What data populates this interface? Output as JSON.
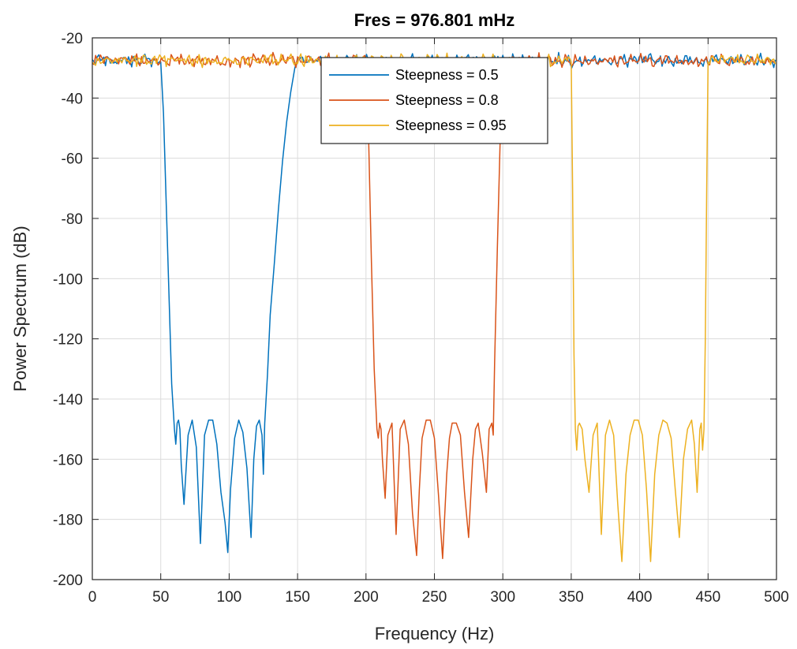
{
  "chart_data": {
    "type": "line",
    "title": "Fres = 976.801 mHz",
    "xlabel": "Frequency (Hz)",
    "ylabel": "Power Spectrum (dB)",
    "xlim": [
      0,
      500
    ],
    "ylim": [
      -200,
      -20
    ],
    "xticks": [
      0,
      50,
      100,
      150,
      200,
      250,
      300,
      350,
      400,
      450,
      500
    ],
    "yticks": [
      -20,
      -40,
      -60,
      -80,
      -100,
      -120,
      -140,
      -160,
      -180,
      -200
    ],
    "grid": true,
    "legend_position": "top-center",
    "noise_floor_db": -27.5,
    "series": [
      {
        "name": "Steepness = 0.5",
        "color": "#0072BD",
        "stopband_hz": [
          50,
          150
        ],
        "x": [
          50,
          52,
          54,
          56,
          58,
          60,
          61,
          62,
          63,
          64,
          65,
          67,
          70,
          73,
          76,
          79,
          82,
          85,
          88,
          91,
          94,
          97,
          99,
          101,
          104,
          107,
          110,
          113,
          116,
          118,
          120,
          122,
          124,
          125,
          126,
          128,
          130,
          133,
          136,
          139,
          142,
          145,
          148,
          150
        ],
        "y": [
          -28,
          -45,
          -75,
          -105,
          -135,
          -150,
          -155,
          -148,
          -147,
          -150,
          -162,
          -175,
          -152,
          -147,
          -156,
          -188,
          -152,
          -147,
          -147,
          -155,
          -171,
          -181,
          -191,
          -170,
          -153,
          -147,
          -151,
          -163,
          -186,
          -160,
          -149,
          -147,
          -152,
          -165,
          -148,
          -132,
          -112,
          -95,
          -77,
          -61,
          -48,
          -38,
          -30,
          -27
        ]
      },
      {
        "name": "Steepness = 0.8",
        "color": "#D95319",
        "stopband_hz": [
          200,
          300
        ],
        "x": [
          200,
          202,
          204,
          206,
          208,
          209,
          210,
          211,
          212,
          214,
          216,
          219,
          222,
          225,
          228,
          231,
          234,
          237,
          239,
          241,
          244,
          247,
          250,
          253,
          256,
          259,
          261,
          263,
          266,
          269,
          272,
          275,
          278,
          280,
          282,
          285,
          288,
          290,
          292,
          293,
          294,
          296,
          298,
          300
        ],
        "y": [
          -28,
          -55,
          -95,
          -130,
          -150,
          -153,
          -148,
          -150,
          -160,
          -173,
          -152,
          -148,
          -185,
          -150,
          -147,
          -155,
          -178,
          -192,
          -170,
          -153,
          -147,
          -147,
          -153,
          -172,
          -193,
          -165,
          -153,
          -148,
          -148,
          -152,
          -171,
          -186,
          -160,
          -150,
          -148,
          -158,
          -171,
          -150,
          -148,
          -152,
          -128,
          -90,
          -55,
          -28
        ]
      },
      {
        "name": "Steepness = 0.95",
        "color": "#EDB120",
        "stopband_hz": [
          350,
          450
        ],
        "x": [
          350,
          351,
          352,
          353,
          354,
          355,
          356,
          358,
          360,
          363,
          366,
          369,
          372,
          375,
          378,
          381,
          384,
          387,
          390,
          393,
          396,
          399,
          402,
          405,
          408,
          411,
          414,
          417,
          420,
          423,
          426,
          429,
          432,
          435,
          438,
          440,
          442,
          444,
          445,
          446,
          447,
          448,
          449,
          450
        ],
        "y": [
          -28,
          -70,
          -125,
          -150,
          -157,
          -149,
          -148,
          -150,
          -160,
          -171,
          -152,
          -148,
          -185,
          -152,
          -147,
          -152,
          -175,
          -194,
          -165,
          -152,
          -147,
          -147,
          -152,
          -170,
          -194,
          -165,
          -152,
          -147,
          -148,
          -153,
          -170,
          -186,
          -160,
          -150,
          -147,
          -155,
          -171,
          -150,
          -148,
          -157,
          -150,
          -120,
          -70,
          -28
        ]
      }
    ]
  }
}
